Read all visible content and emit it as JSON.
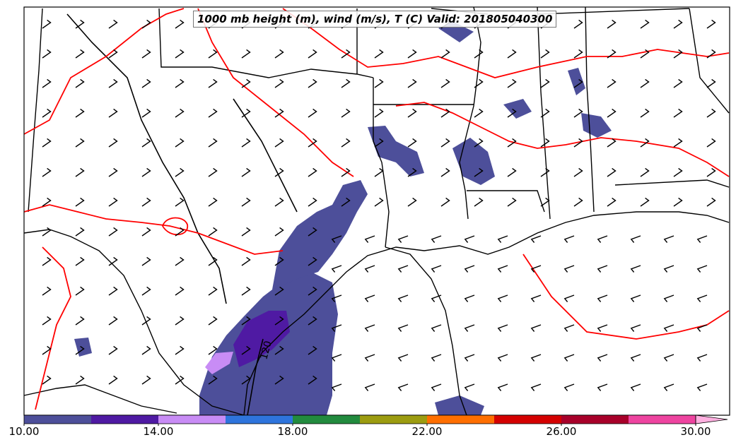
{
  "title": "1000 mb height (m), wind (m/s), T (C) Valid: 201805040300",
  "contour_label": "120",
  "colorbar": {
    "labels": [
      "10.00",
      "14.00",
      "18.00",
      "22.00",
      "26.00",
      "30.00"
    ],
    "colors": [
      "#4d4f9a",
      "#4f1aa3",
      "#c88cf5",
      "#2e74dc",
      "#228b3e",
      "#9c9c10",
      "#ff6f00",
      "#d40000",
      "#a8002a",
      "#ee44a0",
      "#ffb0e0"
    ]
  },
  "styles": {
    "coast_color": "#000000",
    "isotherm_color": "#ff0000",
    "shade_primary": "#4d4f9a",
    "shade_secondary": "#4f1aa3",
    "shade_tertiary": "#c88cf5"
  }
}
